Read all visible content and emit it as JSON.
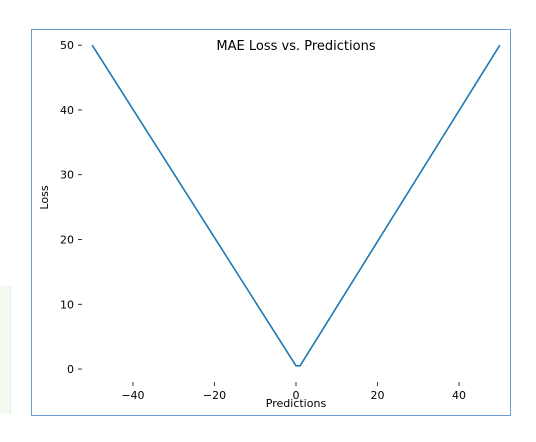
{
  "chart_data": {
    "type": "line",
    "title": "MAE Loss vs. Predictions",
    "xlabel": "Predictions",
    "ylabel": "Loss",
    "xlim": [
      -52.5,
      52.5
    ],
    "ylim": [
      -2.0,
      52.5
    ],
    "xticks": [
      -40,
      -20,
      0,
      20,
      40
    ],
    "yticks": [
      0,
      10,
      20,
      30,
      40,
      50
    ],
    "grid": false,
    "legend": "none",
    "series": [
      {
        "color": "#1f77b4",
        "x": [
          -50,
          0,
          1,
          50
        ],
        "y": [
          50,
          0.5,
          0.5,
          50
        ]
      }
    ]
  }
}
